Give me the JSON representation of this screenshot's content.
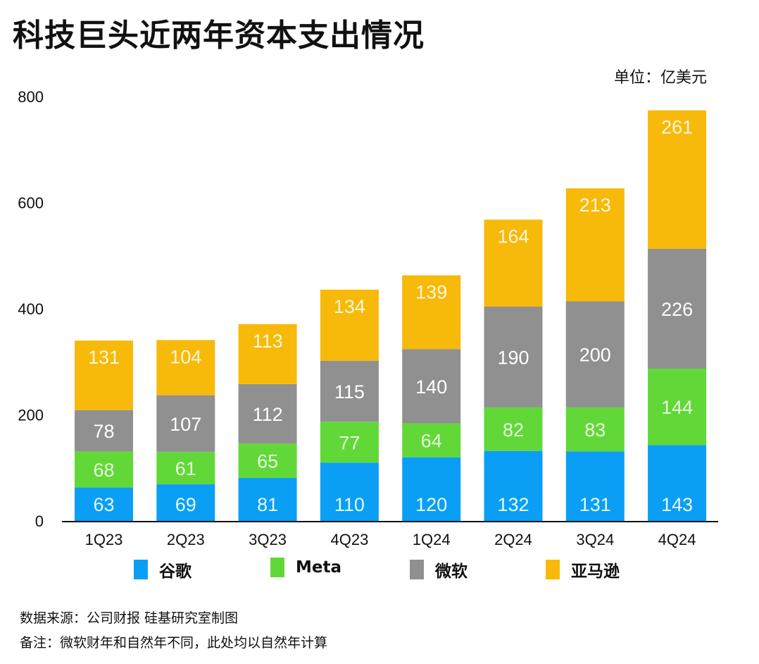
{
  "chart_data": {
    "type": "bar",
    "stacked": true,
    "title": "科技巨头近两年资本支出情况",
    "unit_label": "单位：亿美元",
    "xlabel": "",
    "ylabel": "",
    "ylim": [
      0,
      800
    ],
    "yticks": [
      0,
      200,
      400,
      600,
      800
    ],
    "grid": false,
    "legend_position": "bottom",
    "categories": [
      "1Q23",
      "2Q23",
      "3Q23",
      "4Q23",
      "1Q24",
      "2Q24",
      "3Q24",
      "4Q24"
    ],
    "series": [
      {
        "name": "谷歌",
        "color": "#0a9ff5",
        "values": [
          63,
          69,
          81,
          110,
          120,
          132,
          131,
          143
        ]
      },
      {
        "name": "Meta",
        "color": "#62d838",
        "values": [
          68,
          61,
          65,
          77,
          64,
          82,
          83,
          144
        ]
      },
      {
        "name": "微软",
        "color": "#909090",
        "values": [
          78,
          107,
          112,
          115,
          140,
          190,
          200,
          226
        ]
      },
      {
        "name": "亚马逊",
        "color": "#f7b90a",
        "values": [
          131,
          104,
          113,
          134,
          139,
          164,
          213,
          261
        ]
      }
    ]
  },
  "footnotes": {
    "source": "数据来源：公司财报  硅基研究室制图",
    "note": "备注：微软财年和自然年不同，此处均以自然年计算"
  }
}
